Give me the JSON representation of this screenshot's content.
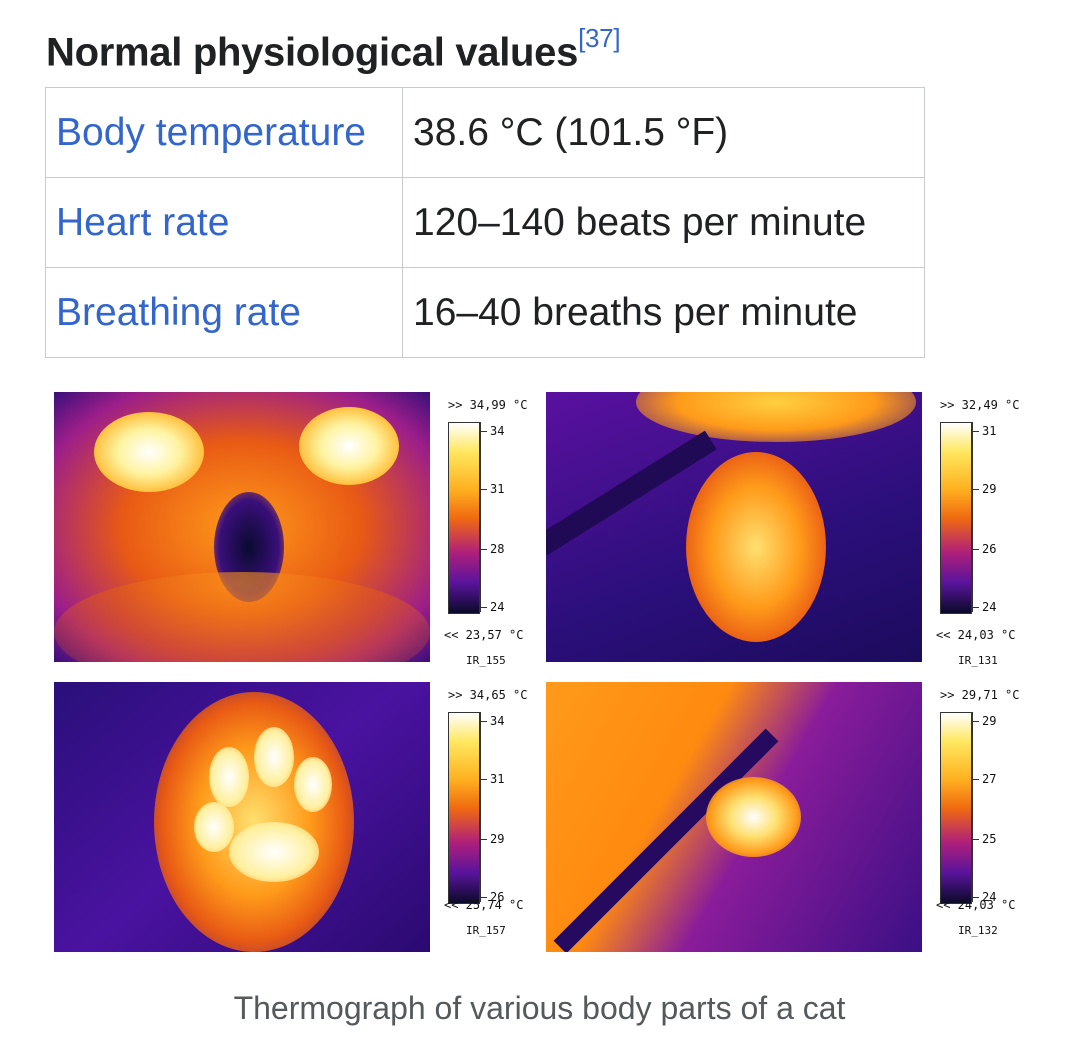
{
  "heading": {
    "title": "Normal physiological values",
    "ref": "[37]"
  },
  "table": {
    "rows": [
      {
        "label": "Body temperature",
        "value": "38.6 °C (101.5 °F)"
      },
      {
        "label": "Heart rate",
        "value": "120–140 beats per minute"
      },
      {
        "label": "Breathing rate",
        "value": "16–40 breaths per minute"
      }
    ]
  },
  "figure": {
    "caption": "Thermograph of various body parts of a cat",
    "panels": [
      {
        "max": ">> 34,99 °C",
        "min": "<< 23,57 °C",
        "id": "IR_155",
        "ticks": [
          "34",
          "31",
          "28",
          "24"
        ]
      },
      {
        "max": ">> 32,49 °C",
        "min": "<< 24,03 °C",
        "id": "IR_131",
        "ticks": [
          "31",
          "29",
          "26",
          "24"
        ]
      },
      {
        "max": ">> 34,65 °C",
        "min": "<< 25,74 °C",
        "id": "IR_157",
        "ticks": [
          "34",
          "31",
          "29",
          "26"
        ]
      },
      {
        "max": ">> 29,71 °C",
        "min": "<< 24,03 °C",
        "id": "IR_132",
        "ticks": [
          "29",
          "27",
          "25",
          "24"
        ]
      }
    ]
  },
  "colors": {
    "link": "#3366cc",
    "text": "#202122",
    "caption": "#54595d",
    "border": "#c8ccd1"
  }
}
